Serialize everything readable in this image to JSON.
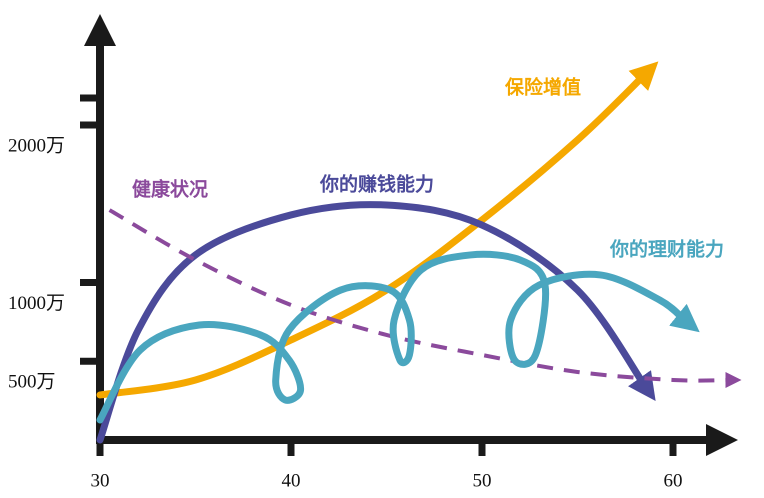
{
  "chart_data": {
    "type": "line",
    "xlim": [
      30,
      63
    ],
    "ylim": [
      0,
      2500
    ],
    "xticks": [
      30,
      40,
      50,
      60
    ],
    "yticks": [
      {
        "value": 500,
        "label": "500万"
      },
      {
        "value": 1000,
        "label": "1000万"
      },
      {
        "value": 2000,
        "label": "2000万"
      }
    ],
    "series": [
      {
        "name": "保险增值",
        "color": "#f5a800",
        "dashed": false,
        "x": [
          30,
          35,
          40,
          45,
          50,
          55,
          58.5
        ],
        "values": [
          286,
          381,
          635,
          952,
          1397,
          1905,
          2317
        ]
      },
      {
        "name": "你的赚钱能力",
        "color": "#4b4a9a",
        "dashed": false,
        "x": [
          30,
          32,
          35,
          40,
          45,
          50,
          55,
          58.5
        ],
        "values": [
          0,
          698,
          1175,
          1429,
          1492,
          1365,
          952,
          349
        ]
      },
      {
        "name": "健康状况",
        "color": "#8b4a9c",
        "dashed": true,
        "x": [
          30.5,
          35,
          40,
          45,
          50,
          55,
          60,
          63
        ],
        "values": [
          1460,
          1143,
          857,
          667,
          540,
          432,
          381,
          381
        ]
      },
      {
        "name": "你的理财能力",
        "color": "#4aa6bf",
        "dashed": false,
        "x": [
          30,
          32.1,
          35.2,
          38.4,
          39.9,
          40.5,
          39.7,
          39.2,
          39.9,
          42.6,
          45.2,
          46.2,
          46.2,
          45.7,
          45.4,
          46.8,
          49.4,
          52.0,
          53.3,
          52.8,
          51.7,
          51.5,
          53.0,
          56.2,
          59.3,
          60.6
        ],
        "values": [
          127,
          571,
          730,
          667,
          508,
          317,
          254,
          381,
          698,
          952,
          952,
          762,
          540,
          508,
          762,
          1079,
          1175,
          1143,
          984,
          540,
          508,
          762,
          984,
          1048,
          889,
          762
        ]
      }
    ]
  }
}
